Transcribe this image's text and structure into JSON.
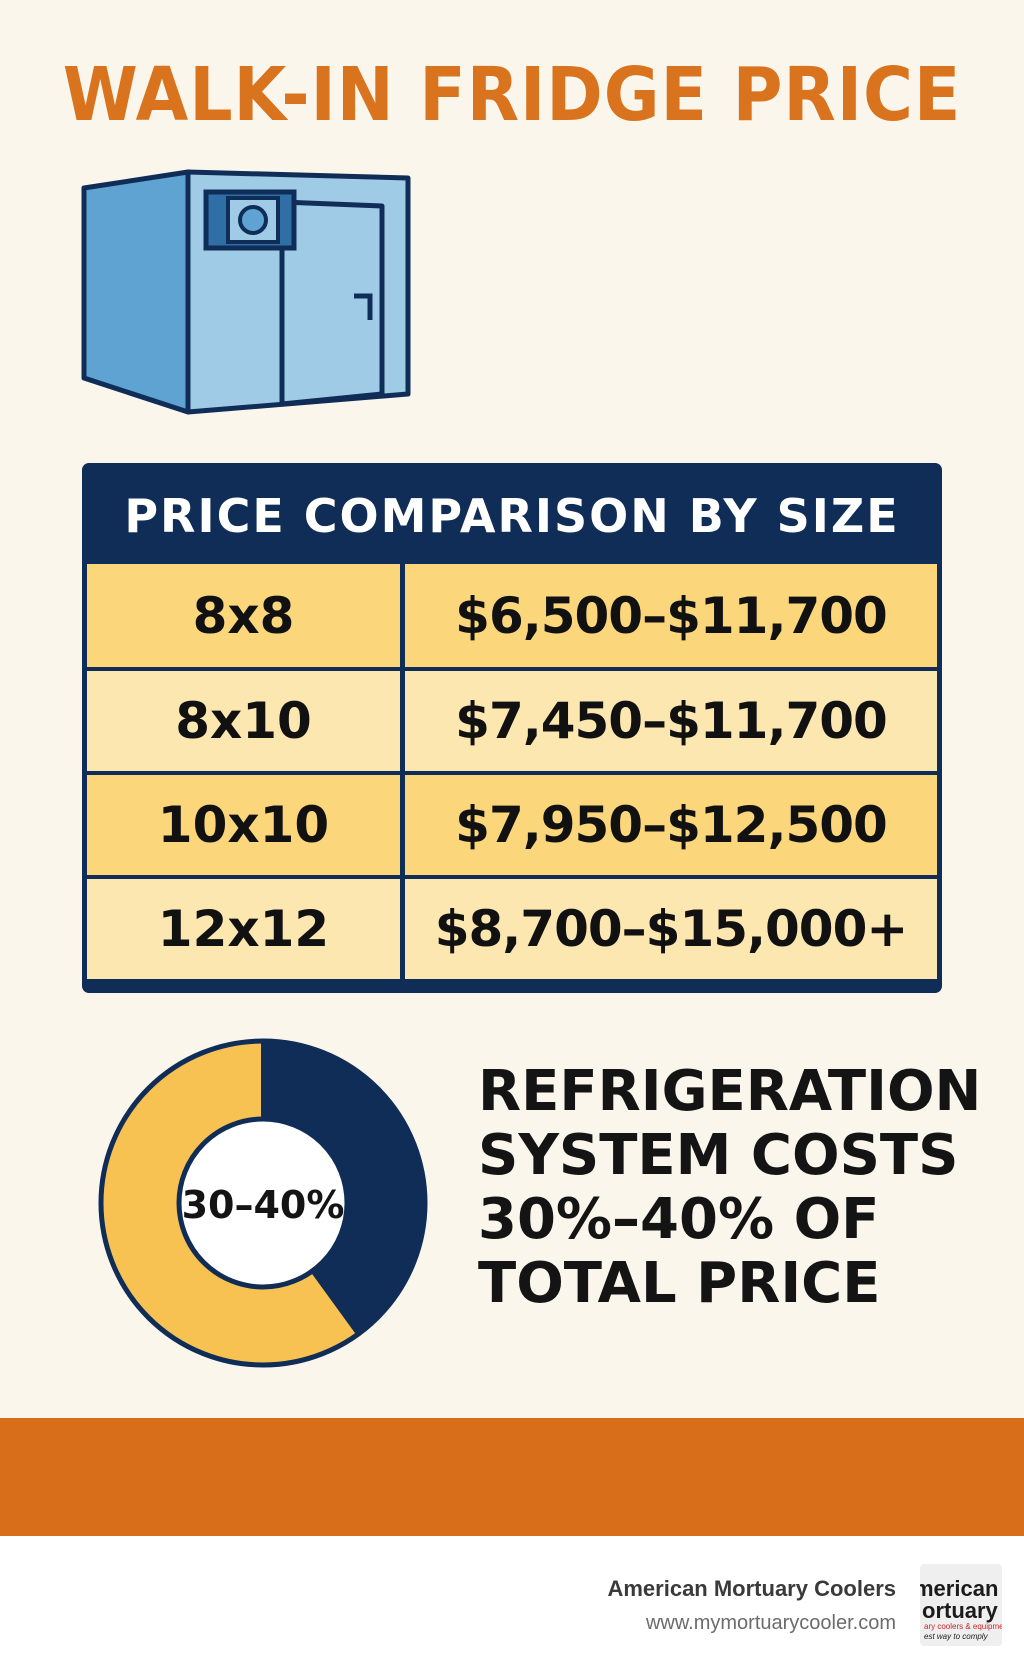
{
  "title": "WALK-IN FRIDGE PRICE",
  "colors": {
    "title": "#d9731e",
    "navy": "#0f2d56",
    "row_dark": "#fbd67a",
    "row_light": "#fde7b0",
    "donut_gold": "#f8c253",
    "band": "#d86e1a",
    "cooler_front": "#9fcbe6",
    "cooler_side": "#5ea3d2"
  },
  "illustration_icon": "walk-in-cooler-icon",
  "table": {
    "header": "PRICE COMPARISON BY SIZE",
    "rows": [
      {
        "size": "8x8",
        "price": "$6,500–$11,700"
      },
      {
        "size": "8x10",
        "price": "$7,450–$11,700"
      },
      {
        "size": "10x10",
        "price": "$7,950–$12,500"
      },
      {
        "size": "12x12",
        "price": "$8,700–$15,000+"
      }
    ]
  },
  "chart_data": {
    "type": "pie",
    "title": "",
    "center_label": "30–40%",
    "slices": [
      {
        "label": "",
        "value": 40,
        "color": "#0f2d56"
      },
      {
        "label": "",
        "value": 60,
        "color": "#f8c253"
      }
    ]
  },
  "note": {
    "lines": [
      "REFRIGERATION",
      "SYSTEM COSTS",
      "30%–40% OF",
      "TOTAL PRICE"
    ]
  },
  "footer": {
    "brand": "American Mortuary Coolers",
    "url": "www.mymortuarycooler.com",
    "logo_lines": [
      "merican",
      "ortuary",
      "ary coolers & equipment",
      "est way to comply"
    ]
  }
}
